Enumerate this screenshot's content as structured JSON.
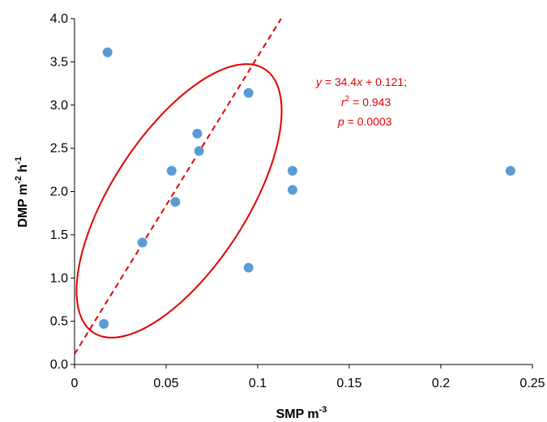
{
  "chart_data": {
    "type": "scatter",
    "title": "",
    "xlabel": {
      "base": "SMP m",
      "sup": "-3"
    },
    "ylabel": {
      "part1": "DMP m",
      "sup1": "-2",
      "part2": " h",
      "sup2": "-1"
    },
    "xlim": [
      0,
      0.25
    ],
    "ylim": [
      0,
      4.0
    ],
    "x_ticks": [
      0,
      0.05,
      0.1,
      0.15,
      0.2,
      0.25
    ],
    "x_tick_labels": [
      "0",
      "0.05",
      "0.1",
      "0.15",
      "0.2",
      "0.25"
    ],
    "y_ticks": [
      0,
      0.5,
      1.0,
      1.5,
      2.0,
      2.5,
      3.0,
      3.5,
      4.0
    ],
    "y_tick_labels": [
      "0.0",
      "0.5",
      "1.0",
      "1.5",
      "2.0",
      "2.5",
      "3.0",
      "3.5",
      "4.0"
    ],
    "grid": false,
    "points": [
      {
        "x": 0.016,
        "y": 0.47
      },
      {
        "x": 0.018,
        "y": 3.61
      },
      {
        "x": 0.037,
        "y": 1.41
      },
      {
        "x": 0.053,
        "y": 2.24
      },
      {
        "x": 0.055,
        "y": 1.88
      },
      {
        "x": 0.067,
        "y": 2.67
      },
      {
        "x": 0.068,
        "y": 2.47
      },
      {
        "x": 0.095,
        "y": 3.14
      },
      {
        "x": 0.095,
        "y": 1.12
      },
      {
        "x": 0.119,
        "y": 2.24
      },
      {
        "x": 0.119,
        "y": 2.02
      },
      {
        "x": 0.238,
        "y": 2.24
      }
    ],
    "regression": {
      "slope": 34.4,
      "intercept": 0.121,
      "style": "dashed"
    },
    "annotation": {
      "line1_a": "y",
      "line1_b": " = 34.4",
      "line1_c": "x",
      "line1_d": " + 0.121;",
      "line2_a": "r",
      "line2_sup": "2",
      "line2_b": " = 0.943",
      "line3_a": "p",
      "line3_b": " = 0.0003"
    },
    "colors": {
      "points": "#5b9bd5",
      "regression": "#e00000",
      "ellipse": "#e00000",
      "annotation": "#e00000",
      "axes": "#000000"
    }
  }
}
